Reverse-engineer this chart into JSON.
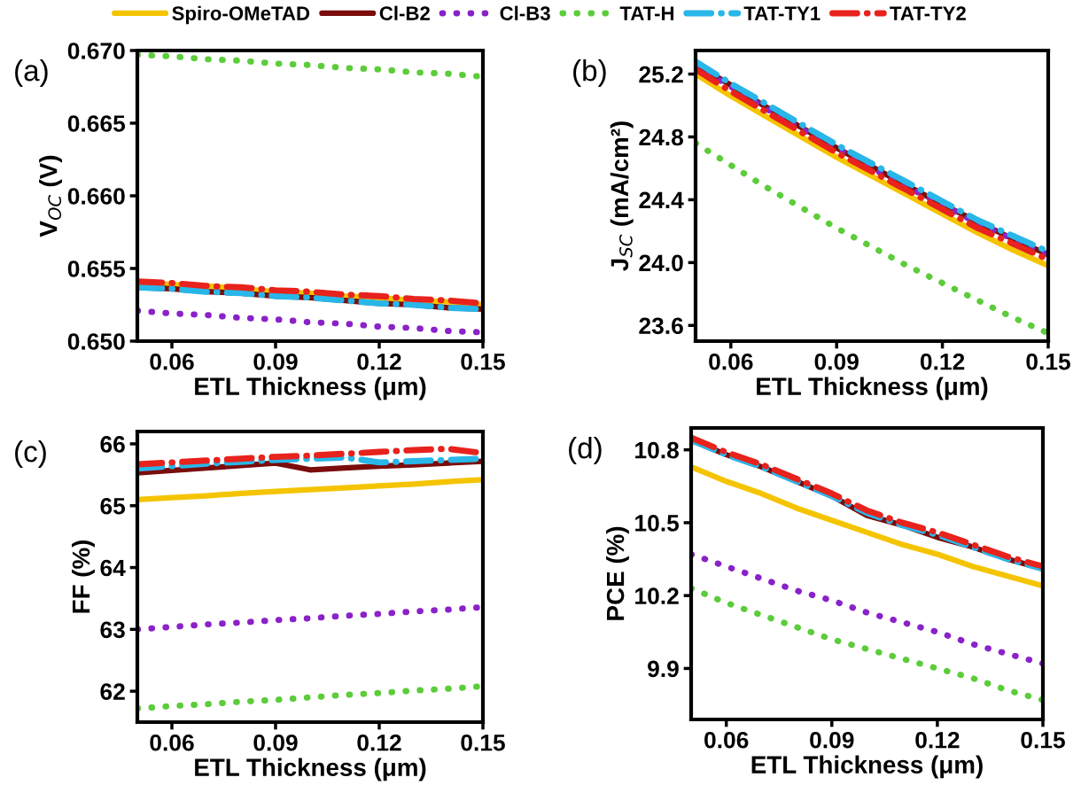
{
  "chart_data": [
    {
      "type": "line",
      "annotations": [
        "(a)"
      ],
      "xlabel": "ETL Thickness (μm)",
      "ylabel": "V$_{OC}$ (V)",
      "legend": "top",
      "grid": false,
      "x": [
        0.05,
        0.06,
        0.07,
        0.08,
        0.09,
        0.1,
        0.11,
        0.12,
        0.13,
        0.14,
        0.15
      ],
      "xlim": [
        0.05,
        0.15
      ],
      "xticks": [
        0.06,
        0.09,
        0.12,
        0.15
      ],
      "ylim": [
        0.65,
        0.67
      ],
      "yticks": [
        {
          "value": 0.65,
          "label": "0.650"
        },
        {
          "value": 0.655,
          "label": "0.655"
        },
        {
          "value": 0.66,
          "label": "0.660"
        },
        {
          "value": 0.665,
          "label": "0.665"
        },
        {
          "value": 0.67,
          "label": "0.670"
        }
      ],
      "series": [
        {
          "name": "Spiro-OMeTAD",
          "color": "#f5c400",
          "line_style": "solid",
          "values": [
            0.6541,
            0.6539,
            0.6538,
            0.6536,
            0.6534,
            0.6533,
            0.6531,
            0.653,
            0.6528,
            0.6527,
            0.6525
          ]
        },
        {
          "name": "Cl-B2",
          "color": "#7b0c0c",
          "line_style": "solid",
          "values": [
            0.6537,
            0.6536,
            0.6534,
            0.6533,
            0.6531,
            0.653,
            0.6528,
            0.6526,
            0.6525,
            0.6523,
            0.6522
          ]
        },
        {
          "name": "Cl-B3",
          "color": "#8a22c8",
          "line_style": "dotted",
          "values": [
            0.6521,
            0.6519,
            0.6518,
            0.6516,
            0.6515,
            0.6513,
            0.6512,
            0.651,
            0.6509,
            0.6507,
            0.6506
          ]
        },
        {
          "name": "TAT-H",
          "color": "#5ccc3a",
          "line_style": "dotted",
          "values": [
            0.6697,
            0.6696,
            0.6694,
            0.6693,
            0.6691,
            0.669,
            0.6688,
            0.6687,
            0.6685,
            0.6684,
            0.6682
          ]
        },
        {
          "name": "TAT-TY1",
          "color": "#29b6e8",
          "line_style": "dashdot",
          "values": [
            0.6537,
            0.6536,
            0.6534,
            0.6533,
            0.6531,
            0.653,
            0.6528,
            0.6526,
            0.6525,
            0.6523,
            0.6522
          ]
        },
        {
          "name": "TAT-TY2",
          "color": "#e8221c",
          "line_style": "dashdot",
          "values": [
            0.6541,
            0.654,
            0.6538,
            0.6537,
            0.6535,
            0.6534,
            0.6532,
            0.6531,
            0.6529,
            0.6528,
            0.6526
          ]
        }
      ]
    },
    {
      "type": "line",
      "annotations": [
        "(b)"
      ],
      "xlabel": "ETL Thickness (μm)",
      "ylabel": "J$_{SC}$ (mA/cm²)",
      "grid": false,
      "x": [
        0.05,
        0.06,
        0.07,
        0.08,
        0.09,
        0.1,
        0.11,
        0.12,
        0.13,
        0.14,
        0.15
      ],
      "xlim": [
        0.05,
        0.15
      ],
      "xticks": [
        0.06,
        0.09,
        0.12,
        0.15
      ],
      "ylim": [
        23.5,
        25.35
      ],
      "yticks": [
        23.6,
        {
          "value": 24.0,
          "label": "24.0"
        },
        24.4,
        24.8,
        25.2
      ],
      "series": [
        {
          "color": "#f5c400",
          "line_style": "solid",
          "values": [
            25.2,
            25.06,
            24.93,
            24.8,
            24.67,
            24.55,
            24.43,
            24.31,
            24.19,
            24.08,
            23.98
          ]
        },
        {
          "color": "#7b0c0c",
          "line_style": "solid",
          "values": [
            25.26,
            25.13,
            24.99,
            24.86,
            24.73,
            24.61,
            24.49,
            24.37,
            24.26,
            24.15,
            24.05
          ]
        },
        {
          "color": "#8a22c8",
          "line_style": "dotted",
          "values": [
            25.25,
            25.12,
            24.98,
            24.85,
            24.73,
            24.6,
            24.48,
            24.37,
            24.25,
            24.15,
            24.05
          ]
        },
        {
          "color": "#5ccc3a",
          "line_style": "dotted",
          "values": [
            24.76,
            24.62,
            24.48,
            24.35,
            24.22,
            24.1,
            23.98,
            23.87,
            23.76,
            23.65,
            23.55
          ]
        },
        {
          "color": "#29b6e8",
          "line_style": "dashdot",
          "values": [
            25.28,
            25.14,
            25.01,
            24.88,
            24.75,
            24.63,
            24.51,
            24.39,
            24.27,
            24.17,
            24.07
          ]
        },
        {
          "color": "#e8221c",
          "line_style": "dashdot",
          "values": [
            25.23,
            25.09,
            24.96,
            24.83,
            24.7,
            24.58,
            24.46,
            24.34,
            24.22,
            24.12,
            24.02
          ]
        }
      ]
    },
    {
      "type": "line",
      "annotations": [
        "(c)"
      ],
      "xlabel": "ETL Thickness (μm)",
      "ylabel": "FF (%)",
      "grid": false,
      "x": [
        0.05,
        0.06,
        0.07,
        0.08,
        0.09,
        0.1,
        0.11,
        0.12,
        0.13,
        0.14,
        0.15
      ],
      "xlim": [
        0.05,
        0.15
      ],
      "xticks": [
        0.06,
        0.09,
        0.12,
        0.15
      ],
      "ylim": [
        61.5,
        66.2
      ],
      "yticks": [
        62,
        63,
        64,
        65,
        66
      ],
      "series": [
        {
          "color": "#f5c400",
          "line_style": "solid",
          "values": [
            65.1,
            65.13,
            65.16,
            65.2,
            65.23,
            65.26,
            65.29,
            65.32,
            65.35,
            65.39,
            65.42
          ]
        },
        {
          "color": "#7b0c0c",
          "line_style": "solid",
          "values": [
            65.53,
            65.57,
            65.61,
            65.65,
            65.69,
            65.58,
            65.61,
            65.64,
            65.66,
            65.69,
            65.72
          ]
        },
        {
          "color": "#8a22c8",
          "line_style": "dotted",
          "values": [
            63.0,
            63.04,
            63.08,
            63.11,
            63.15,
            63.18,
            63.22,
            63.25,
            63.29,
            63.32,
            63.36
          ]
        },
        {
          "color": "#5ccc3a",
          "line_style": "dotted",
          "values": [
            61.72,
            61.76,
            61.79,
            61.83,
            61.86,
            61.9,
            61.94,
            61.97,
            62.01,
            62.04,
            62.08
          ]
        },
        {
          "color": "#29b6e8",
          "line_style": "dashdot",
          "values": [
            65.6,
            65.64,
            65.68,
            65.71,
            65.74,
            65.76,
            65.78,
            65.7,
            65.72,
            65.74,
            65.76
          ]
        },
        {
          "color": "#e8221c",
          "line_style": "dashdot",
          "values": [
            65.67,
            65.7,
            65.73,
            65.76,
            65.79,
            65.81,
            65.84,
            65.87,
            65.9,
            65.92,
            65.85
          ]
        }
      ]
    },
    {
      "type": "line",
      "annotations": [
        "(d)"
      ],
      "xlabel": "ETL Thickness (μm)",
      "ylabel": "PCE (%)",
      "grid": false,
      "x": [
        0.05,
        0.06,
        0.07,
        0.08,
        0.09,
        0.1,
        0.11,
        0.12,
        0.13,
        0.14,
        0.15
      ],
      "xlim": [
        0.05,
        0.15
      ],
      "xticks": [
        0.06,
        0.09,
        0.12,
        0.15
      ],
      "ylim": [
        9.69,
        10.89
      ],
      "yticks": [
        9.9,
        10.2,
        10.5,
        10.8
      ],
      "series": [
        {
          "color": "#f5c400",
          "line_style": "solid",
          "values": [
            10.73,
            10.67,
            10.62,
            10.56,
            10.51,
            10.46,
            10.41,
            10.37,
            10.32,
            10.28,
            10.24
          ]
        },
        {
          "color": "#7b0c0c",
          "line_style": "solid",
          "values": [
            10.84,
            10.78,
            10.73,
            10.67,
            10.61,
            10.53,
            10.49,
            10.44,
            10.4,
            10.35,
            10.31
          ]
        },
        {
          "color": "#8a22c8",
          "line_style": "dotted",
          "values": [
            10.37,
            10.32,
            10.27,
            10.22,
            10.18,
            10.13,
            10.09,
            10.05,
            10.0,
            9.96,
            9.92
          ]
        },
        {
          "color": "#5ccc3a",
          "line_style": "dotted",
          "values": [
            10.23,
            10.17,
            10.12,
            10.07,
            10.02,
            9.98,
            9.94,
            9.9,
            9.86,
            9.81,
            9.77
          ]
        },
        {
          "color": "#29b6e8",
          "line_style": "dashdot",
          "values": [
            10.84,
            10.78,
            10.73,
            10.67,
            10.61,
            10.54,
            10.49,
            10.45,
            10.4,
            10.35,
            10.31
          ]
        },
        {
          "color": "#e8221c",
          "line_style": "dashdot",
          "values": [
            10.85,
            10.79,
            10.74,
            10.68,
            10.62,
            10.55,
            10.5,
            10.46,
            10.41,
            10.36,
            10.32
          ]
        }
      ]
    }
  ]
}
